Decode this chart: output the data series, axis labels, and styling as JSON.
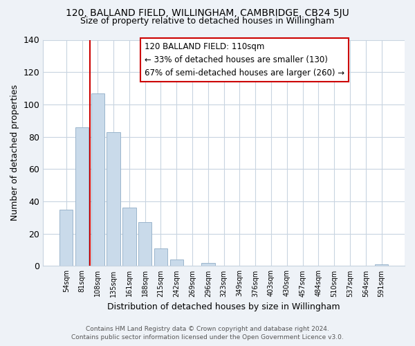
{
  "title": "120, BALLAND FIELD, WILLINGHAM, CAMBRIDGE, CB24 5JU",
  "subtitle": "Size of property relative to detached houses in Willingham",
  "xlabel": "Distribution of detached houses by size in Willingham",
  "ylabel": "Number of detached properties",
  "bar_labels": [
    "54sqm",
    "81sqm",
    "108sqm",
    "135sqm",
    "161sqm",
    "188sqm",
    "215sqm",
    "242sqm",
    "269sqm",
    "296sqm",
    "323sqm",
    "349sqm",
    "376sqm",
    "403sqm",
    "430sqm",
    "457sqm",
    "484sqm",
    "510sqm",
    "537sqm",
    "564sqm",
    "591sqm"
  ],
  "bar_values": [
    35,
    86,
    107,
    83,
    36,
    27,
    11,
    4,
    0,
    2,
    0,
    0,
    0,
    0,
    0,
    0,
    0,
    0,
    0,
    0,
    1
  ],
  "bar_color": "#c9daea",
  "bar_edge_color": "#9ab5cc",
  "vline_color": "#cc0000",
  "annotation_text": "120 BALLAND FIELD: 110sqm\n← 33% of detached houses are smaller (130)\n67% of semi-detached houses are larger (260) →",
  "annotation_box_color": "white",
  "annotation_box_edge": "#cc0000",
  "ylim": [
    0,
    140
  ],
  "yticks": [
    0,
    20,
    40,
    60,
    80,
    100,
    120,
    140
  ],
  "footer_line1": "Contains HM Land Registry data © Crown copyright and database right 2024.",
  "footer_line2": "Contains public sector information licensed under the Open Government Licence v3.0.",
  "bg_color": "#eef2f7",
  "plot_bg_color": "#ffffff",
  "grid_color": "#c8d4e0"
}
